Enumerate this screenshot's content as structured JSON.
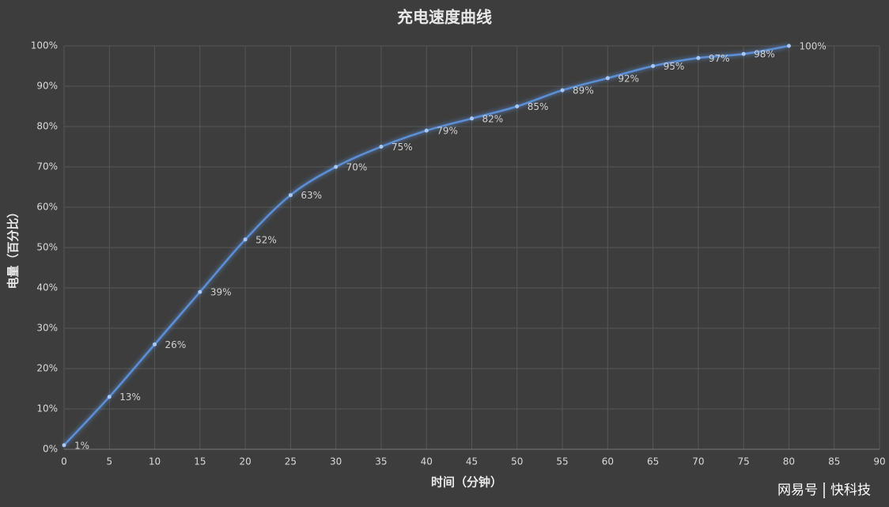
{
  "chart_data": {
    "type": "line",
    "title": "充电速度曲线",
    "x_label": "时间（分钟）",
    "y_label": "电量（百分比）",
    "x": [
      0,
      5,
      10,
      15,
      20,
      25,
      30,
      35,
      40,
      45,
      50,
      55,
      60,
      65,
      70,
      75,
      80
    ],
    "series": [
      {
        "name": "电量",
        "color": "#5b8fd6",
        "values": [
          1,
          13,
          26,
          39,
          52,
          63,
          70,
          75,
          79,
          82,
          85,
          89,
          92,
          95,
          97,
          98,
          100
        ],
        "value_labels": [
          "1%",
          "13%",
          "26%",
          "39%",
          "52%",
          "63%",
          "70%",
          "75%",
          "79%",
          "82%",
          "85%",
          "89%",
          "92%",
          "95%",
          "97%",
          "98%",
          "100%"
        ]
      }
    ],
    "xlim": [
      0,
      90
    ],
    "xticks": [
      0,
      5,
      10,
      15,
      20,
      25,
      30,
      35,
      40,
      45,
      50,
      55,
      60,
      65,
      70,
      75,
      80,
      85,
      90
    ],
    "ylim": [
      0,
      100
    ],
    "yticks": [
      {
        "value": 0,
        "label": "0%"
      },
      {
        "value": 10,
        "label": "10%"
      },
      {
        "value": 20,
        "label": "20%"
      },
      {
        "value": 30,
        "label": "30%"
      },
      {
        "value": 40,
        "label": "40%"
      },
      {
        "value": 50,
        "label": "50%"
      },
      {
        "value": 60,
        "label": "60%"
      },
      {
        "value": 70,
        "label": "70%"
      },
      {
        "value": 80,
        "label": "80%"
      },
      {
        "value": 90,
        "label": "90%"
      },
      {
        "value": 100,
        "label": "100%"
      }
    ],
    "grid": true,
    "source": [
      "网易号",
      "快科技"
    ]
  }
}
